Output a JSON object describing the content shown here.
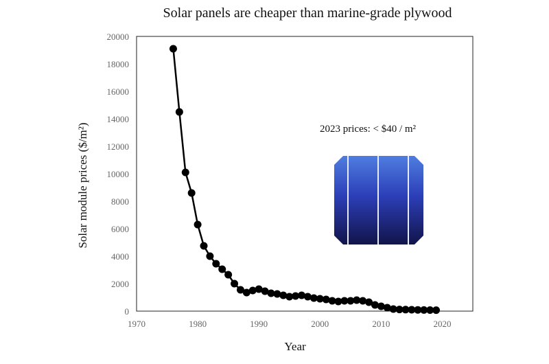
{
  "chart_data": {
    "type": "line",
    "title": "Solar panels are cheaper than marine-grade plywood",
    "xlabel": "Year",
    "ylabel": "Solar module prices ($/m²)",
    "xlim": [
      1970,
      2025
    ],
    "ylim": [
      0,
      20000
    ],
    "x_ticks": [
      1970,
      1980,
      1990,
      2000,
      2010,
      2020
    ],
    "y_ticks": [
      0,
      2000,
      4000,
      6000,
      8000,
      10000,
      12000,
      14000,
      16000,
      18000,
      20000
    ],
    "grid": false,
    "annotation": "2023 prices: < $40 / m²",
    "series": [
      {
        "color": "#000000",
        "marker": "circle",
        "x": [
          1976,
          1977,
          1978,
          1979,
          1980,
          1981,
          1982,
          1983,
          1984,
          1985,
          1986,
          1987,
          1988,
          1989,
          1990,
          1991,
          1992,
          1993,
          1994,
          1995,
          1996,
          1997,
          1998,
          1999,
          2000,
          2001,
          2002,
          2003,
          2004,
          2005,
          2006,
          2007,
          2008,
          2009,
          2010,
          2011,
          2012,
          2013,
          2014,
          2015,
          2016,
          2017,
          2018,
          2019
        ],
        "y": [
          19100,
          14500,
          10100,
          8600,
          6300,
          4750,
          4000,
          3450,
          3050,
          2650,
          2000,
          1550,
          1350,
          1500,
          1600,
          1450,
          1300,
          1250,
          1150,
          1050,
          1100,
          1150,
          1050,
          950,
          900,
          850,
          750,
          700,
          750,
          750,
          800,
          750,
          650,
          450,
          350,
          250,
          150,
          120,
          110,
          100,
          90,
          80,
          75,
          70
        ]
      }
    ]
  },
  "inset": {
    "name": "solar-cell-image",
    "colors": {
      "top": "#4f7de0",
      "mid": "#2c3fb8",
      "dark": "#12144a",
      "line": "#e8ecf5"
    }
  }
}
